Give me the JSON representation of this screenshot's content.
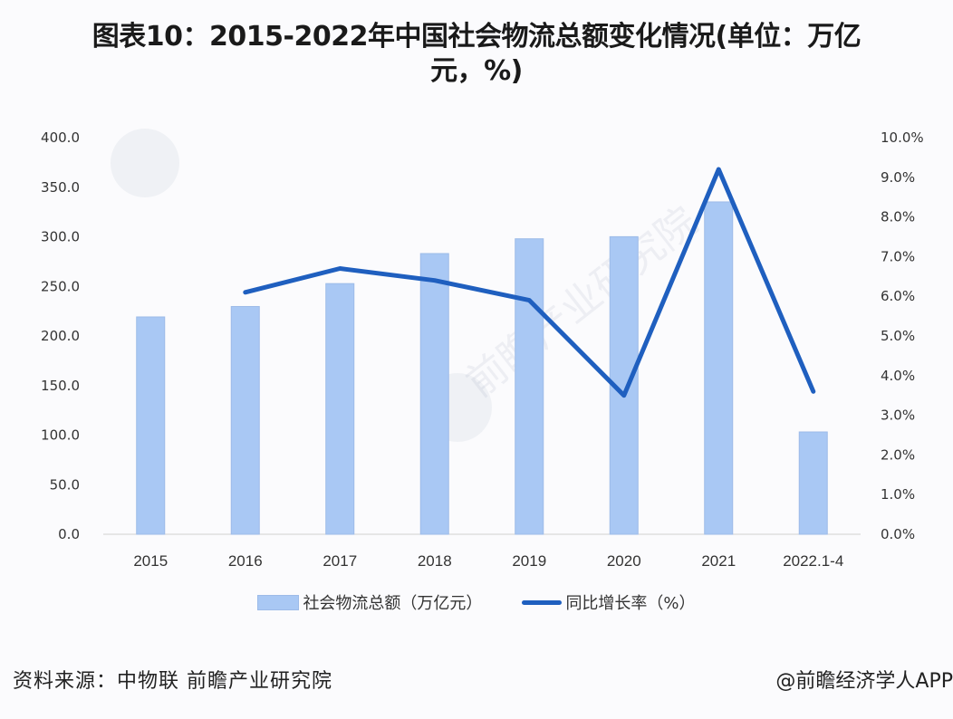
{
  "title": {
    "line1": "图表10：2015-2022年中国社会物流总额变化情况(单位：万亿",
    "line2": "元，%)"
  },
  "legend": {
    "bar_label": "社会物流总额（万亿元）",
    "line_label": "同比增长率（%）"
  },
  "footer": {
    "source": "资料来源：中物联 前瞻产业研究院",
    "brand": "@前瞻经济学人APP"
  },
  "watermark": {
    "text": "前瞻产业研究院"
  },
  "colors": {
    "bar": "#a9c8f4",
    "bar_border": "#9dbbe8",
    "line": "#1f5fbf",
    "background": "#fbfbfd"
  },
  "chart_data": {
    "type": "bar+line",
    "title": "2015-2022年中国社会物流总额变化情况(单位：万亿元，%)",
    "categories": [
      "2015",
      "2016",
      "2017",
      "2018",
      "2019",
      "2020",
      "2021",
      "2022.1-4"
    ],
    "series": [
      {
        "name": "社会物流总额（万亿元）",
        "type": "bar",
        "axis": "left",
        "values": [
          219.2,
          229.7,
          252.8,
          283.1,
          298.0,
          300.1,
          335.2,
          103.2
        ]
      },
      {
        "name": "同比增长率（%）",
        "type": "line",
        "axis": "right",
        "values": [
          null,
          6.1,
          6.7,
          6.4,
          5.9,
          3.5,
          9.2,
          3.6
        ]
      }
    ],
    "left_axis": {
      "ylim": [
        0,
        400
      ],
      "ticks": [
        "0.0",
        "50.0",
        "100.0",
        "150.0",
        "200.0",
        "250.0",
        "300.0",
        "350.0",
        "400.0"
      ]
    },
    "right_axis": {
      "ylim": [
        0,
        10
      ],
      "ticks": [
        "0.0%",
        "1.0%",
        "2.0%",
        "3.0%",
        "4.0%",
        "5.0%",
        "6.0%",
        "7.0%",
        "8.0%",
        "9.0%",
        "10.0%"
      ]
    },
    "xlabel": "",
    "ylabel": "",
    "grid": false,
    "legend_position": "bottom"
  }
}
